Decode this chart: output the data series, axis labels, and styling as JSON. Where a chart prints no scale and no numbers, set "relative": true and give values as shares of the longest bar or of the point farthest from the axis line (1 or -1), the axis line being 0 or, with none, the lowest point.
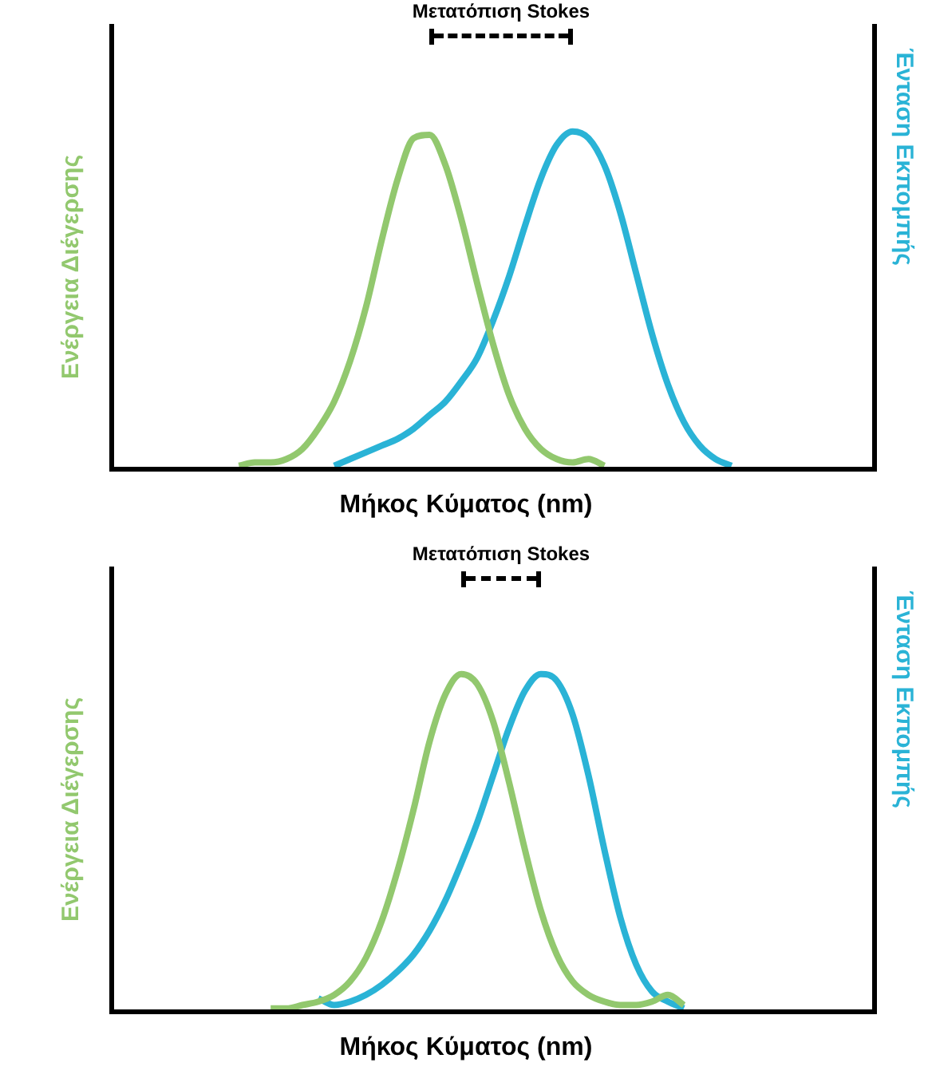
{
  "chart_data": [
    {
      "type": "line",
      "relative": true,
      "tick_labels": false,
      "xlabel": "Μήκος Κύματος (nm)",
      "ylabel": "Ενέργεια Διέγερσης",
      "y2label": "Ένταση Εκπομπής",
      "annotations": [
        "Μετατόπιση Stokes"
      ],
      "categories": [
        null,
        null,
        null,
        null,
        null,
        null,
        null,
        null,
        null,
        null,
        null,
        null,
        null,
        null,
        null,
        null,
        null,
        null,
        null,
        null,
        null,
        null,
        null,
        null,
        null,
        null,
        null,
        null,
        null,
        null,
        null,
        null,
        null,
        null,
        null,
        null,
        null,
        null,
        null,
        null,
        null,
        null,
        null,
        null,
        null,
        null,
        null,
        null,
        null
      ],
      "series": [
        {
          "color": "#92c86e",
          "values": [
            null,
            null,
            null,
            null,
            null,
            null,
            null,
            null,
            0.01,
            0.02,
            0.02,
            0.03,
            0.06,
            0.12,
            0.2,
            0.32,
            0.48,
            0.68,
            0.86,
            0.98,
            0.99,
            0.9,
            0.74,
            0.55,
            0.37,
            0.22,
            0.12,
            0.06,
            0.03,
            0.02,
            0.03,
            0.01,
            null,
            null,
            null,
            null,
            null,
            null,
            null,
            null,
            null,
            null,
            null,
            null,
            null,
            null,
            null,
            null,
            null
          ]
        },
        {
          "color": "#2ab3d6",
          "values": [
            null,
            null,
            null,
            null,
            null,
            null,
            null,
            null,
            null,
            null,
            null,
            null,
            null,
            null,
            0.01,
            0.03,
            0.05,
            0.07,
            0.09,
            0.12,
            0.16,
            0.2,
            0.26,
            0.33,
            0.44,
            0.57,
            0.72,
            0.86,
            0.96,
            1,
            0.98,
            0.9,
            0.76,
            0.58,
            0.4,
            0.25,
            0.14,
            0.07,
            0.03,
            0.01,
            null,
            null,
            null,
            null,
            null,
            null,
            null,
            null,
            null
          ]
        }
      ]
    },
    {
      "type": "line",
      "relative": true,
      "tick_labels": false,
      "xlabel": "Μήκος Κύματος (nm)",
      "ylabel": "Ενέργεια Διέγερσης",
      "y2label": "Ένταση Εκπομπής",
      "annotations": [
        "Μετατόπιση Stokes"
      ],
      "categories": [
        null,
        null,
        null,
        null,
        null,
        null,
        null,
        null,
        null,
        null,
        null,
        null,
        null,
        null,
        null,
        null,
        null,
        null,
        null,
        null,
        null,
        null,
        null,
        null,
        null,
        null,
        null,
        null,
        null,
        null,
        null,
        null,
        null,
        null,
        null,
        null,
        null,
        null,
        null,
        null,
        null,
        null,
        null,
        null,
        null,
        null,
        null,
        null,
        null
      ],
      "series": [
        {
          "color": "#92c86e",
          "values": [
            null,
            null,
            null,
            null,
            null,
            null,
            null,
            null,
            null,
            null,
            0.01,
            0.01,
            0.02,
            0.03,
            0.05,
            0.09,
            0.16,
            0.27,
            0.42,
            0.6,
            0.8,
            0.94,
            1,
            0.97,
            0.86,
            0.68,
            0.48,
            0.3,
            0.17,
            0.09,
            0.05,
            0.03,
            0.02,
            0.02,
            0.03,
            0.05,
            0.02,
            null,
            null,
            null,
            null,
            null,
            null,
            null,
            null,
            null,
            null,
            null,
            null
          ]
        },
        {
          "color": "#2ab3d6",
          "values": [
            null,
            null,
            null,
            null,
            null,
            null,
            null,
            null,
            null,
            null,
            null,
            null,
            null,
            0.04,
            0.02,
            0.03,
            0.05,
            0.08,
            0.12,
            0.17,
            0.24,
            0.33,
            0.44,
            0.56,
            0.7,
            0.84,
            0.95,
            1,
            0.98,
            0.88,
            0.7,
            0.48,
            0.28,
            0.14,
            0.06,
            0.03,
            0.01,
            null,
            null,
            null,
            null,
            null,
            null,
            null,
            null,
            null,
            null,
            null,
            null
          ]
        }
      ]
    }
  ]
}
